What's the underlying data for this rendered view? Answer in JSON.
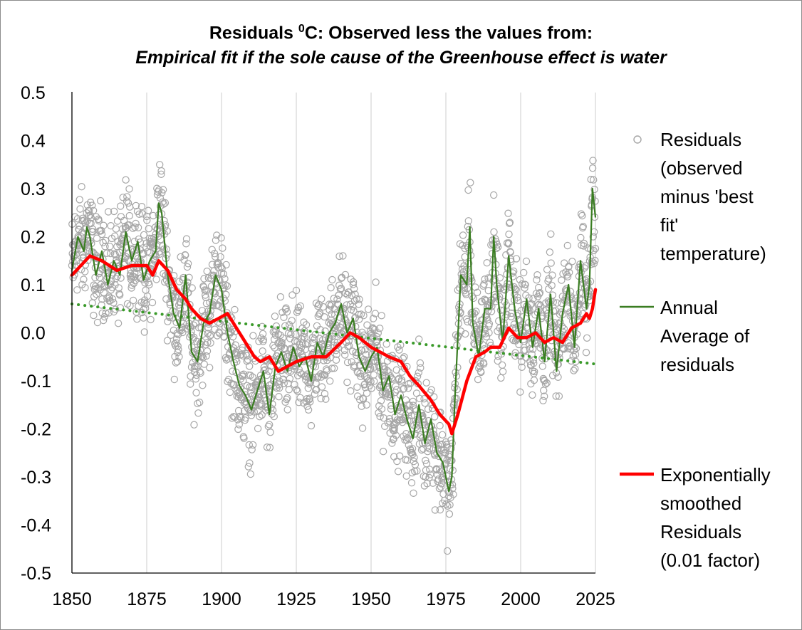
{
  "chart_data": {
    "type": "scatter",
    "title_main": "Residuals ",
    "title_sup": "0",
    "title_rest": "C: Observed less the values from:",
    "subtitle": "Empirical fit if the sole cause of the Greenhouse effect is water",
    "xlabel": "",
    "ylabel": "",
    "xlim": [
      1850,
      2025
    ],
    "ylim": [
      -0.5,
      0.5
    ],
    "x_ticks": [
      "1850",
      "1875",
      "1900",
      "1925",
      "1950",
      "1975",
      "2000",
      "2025"
    ],
    "y_ticks": [
      "0.5",
      "0.4",
      "0.3",
      "0.2",
      "0.1",
      "0.0",
      "-0.1",
      "-0.2",
      "-0.3",
      "-0.4",
      "-0.5"
    ],
    "grid": "vertical",
    "legend_position": "right",
    "colors": {
      "residuals": "#a6a6a6",
      "annual": "#3a7d22",
      "smoothed": "#ff0000",
      "trend": "#3a9a2a"
    },
    "series": [
      {
        "name": "Residuals (observed minus 'best fit' temperature)",
        "legend_lines": [
          "Residuals",
          "(observed",
          "minus 'best",
          "fit'",
          "temperature)"
        ],
        "style": "scatter-open-circle",
        "points_per_year": 12
      },
      {
        "name": "Annual Average of residuals",
        "legend_lines": [
          "Annual",
          "Average of",
          "residuals"
        ],
        "style": "line",
        "x": [
          1850,
          1852,
          1854,
          1855,
          1856,
          1858,
          1860,
          1862,
          1864,
          1866,
          1868,
          1870,
          1872,
          1874,
          1876,
          1878,
          1879,
          1880,
          1882,
          1884,
          1886,
          1888,
          1890,
          1892,
          1894,
          1896,
          1898,
          1900,
          1902,
          1904,
          1906,
          1908,
          1910,
          1912,
          1914,
          1916,
          1918,
          1920,
          1922,
          1924,
          1926,
          1928,
          1930,
          1932,
          1934,
          1936,
          1938,
          1940,
          1942,
          1944,
          1946,
          1948,
          1950,
          1952,
          1954,
          1956,
          1958,
          1960,
          1962,
          1964,
          1966,
          1968,
          1970,
          1972,
          1974,
          1976,
          1977,
          1978,
          1980,
          1982,
          1983,
          1984,
          1986,
          1988,
          1990,
          1991,
          1992,
          1994,
          1996,
          1998,
          2000,
          2002,
          2004,
          2006,
          2008,
          2010,
          2012,
          2014,
          2016,
          2018,
          2020,
          2022,
          2023,
          2024,
          2025
        ],
        "y": [
          0.13,
          0.2,
          0.17,
          0.22,
          0.2,
          0.12,
          0.17,
          0.1,
          0.15,
          0.12,
          0.21,
          0.15,
          0.19,
          0.11,
          0.15,
          0.17,
          0.27,
          0.25,
          0.12,
          0.04,
          0.01,
          0.12,
          -0.04,
          -0.06,
          0.02,
          0.04,
          0.12,
          0.09,
          0.0,
          -0.06,
          -0.11,
          -0.13,
          -0.16,
          -0.12,
          -0.08,
          -0.17,
          -0.07,
          -0.04,
          -0.08,
          -0.03,
          -0.07,
          -0.05,
          -0.1,
          -0.02,
          -0.05,
          0.0,
          0.02,
          0.06,
          0.0,
          0.03,
          -0.05,
          -0.08,
          -0.05,
          -0.03,
          -0.12,
          -0.09,
          -0.17,
          -0.13,
          -0.18,
          -0.22,
          -0.15,
          -0.23,
          -0.18,
          -0.25,
          -0.27,
          -0.33,
          -0.3,
          -0.14,
          0.12,
          0.1,
          0.22,
          0.02,
          -0.05,
          0.05,
          0.05,
          0.2,
          0.1,
          -0.02,
          0.16,
          0.05,
          -0.02,
          0.07,
          -0.03,
          0.05,
          -0.06,
          0.08,
          -0.08,
          0.04,
          0.1,
          -0.03,
          0.15,
          0.05,
          0.1,
          0.3,
          0.24
        ]
      },
      {
        "name": "Exponentially smoothed Residuals (0.01 factor)",
        "legend_lines": [
          "Exponentially",
          "smoothed",
          "Residuals",
          "(0.01 factor)"
        ],
        "style": "line-thick",
        "x": [
          1850,
          1853,
          1856,
          1860,
          1865,
          1870,
          1875,
          1877,
          1879,
          1882,
          1885,
          1888,
          1890,
          1893,
          1896,
          1899,
          1902,
          1905,
          1908,
          1911,
          1913,
          1916,
          1919,
          1922,
          1925,
          1930,
          1935,
          1940,
          1943,
          1946,
          1950,
          1953,
          1956,
          1960,
          1963,
          1966,
          1970,
          1973,
          1976,
          1977,
          1979,
          1982,
          1985,
          1988,
          1990,
          1993,
          1996,
          1999,
          2002,
          2005,
          2008,
          2011,
          2014,
          2017,
          2020,
          2022,
          2023,
          2024,
          2025
        ],
        "y": [
          0.12,
          0.14,
          0.16,
          0.15,
          0.13,
          0.14,
          0.14,
          0.12,
          0.15,
          0.13,
          0.09,
          0.07,
          0.05,
          0.03,
          0.02,
          0.03,
          0.04,
          0.01,
          -0.02,
          -0.05,
          -0.06,
          -0.05,
          -0.08,
          -0.07,
          -0.06,
          -0.05,
          -0.05,
          -0.02,
          0.0,
          -0.01,
          -0.03,
          -0.04,
          -0.05,
          -0.06,
          -0.09,
          -0.11,
          -0.14,
          -0.17,
          -0.19,
          -0.21,
          -0.17,
          -0.1,
          -0.05,
          -0.04,
          -0.03,
          -0.03,
          0.01,
          -0.01,
          -0.01,
          0.0,
          -0.02,
          -0.01,
          -0.02,
          0.01,
          0.02,
          0.04,
          0.03,
          0.05,
          0.09
        ]
      },
      {
        "name": "",
        "style": "dotted-trend",
        "x": [
          1850,
          2025
        ],
        "y": [
          0.06,
          -0.065
        ]
      }
    ]
  }
}
